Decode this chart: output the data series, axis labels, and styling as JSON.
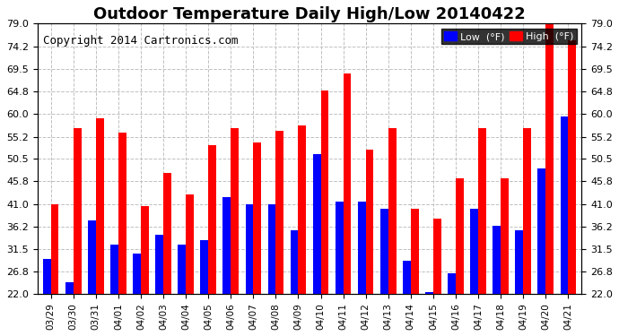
{
  "title": "Outdoor Temperature Daily High/Low 20140422",
  "copyright": "Copyright 2014 Cartronics.com",
  "legend_low": "Low  (°F)",
  "legend_high": "High  (°F)",
  "dates": [
    "03/29",
    "03/30",
    "03/31",
    "04/01",
    "04/02",
    "04/03",
    "04/04",
    "04/05",
    "04/06",
    "04/07",
    "04/08",
    "04/09",
    "04/10",
    "04/11",
    "04/12",
    "04/13",
    "04/14",
    "04/15",
    "04/16",
    "04/17",
    "04/18",
    "04/19",
    "04/20",
    "04/21"
  ],
  "high": [
    41.0,
    57.0,
    59.0,
    56.0,
    40.5,
    47.5,
    43.0,
    53.5,
    57.0,
    54.0,
    56.5,
    57.5,
    65.0,
    68.5,
    52.5,
    57.0,
    40.0,
    38.0,
    46.5,
    57.0,
    46.5,
    57.0,
    79.5,
    75.5
  ],
  "low": [
    29.5,
    24.5,
    37.5,
    32.5,
    30.5,
    34.5,
    32.5,
    33.5,
    42.5,
    41.0,
    41.0,
    35.5,
    51.5,
    41.5,
    41.5,
    40.0,
    29.0,
    22.5,
    26.5,
    40.0,
    36.5,
    35.5,
    48.5,
    59.5
  ],
  "ylim": [
    22.0,
    79.0
  ],
  "yticks": [
    22.0,
    26.8,
    31.5,
    36.2,
    41.0,
    45.8,
    50.5,
    55.2,
    60.0,
    64.8,
    69.5,
    74.2,
    79.0
  ],
  "bar_color_low": "#0000ff",
  "bar_color_high": "#ff0000",
  "bg_color": "#ffffff",
  "grid_color": "#c0c0c0",
  "title_fontsize": 13,
  "copyright_fontsize": 9
}
